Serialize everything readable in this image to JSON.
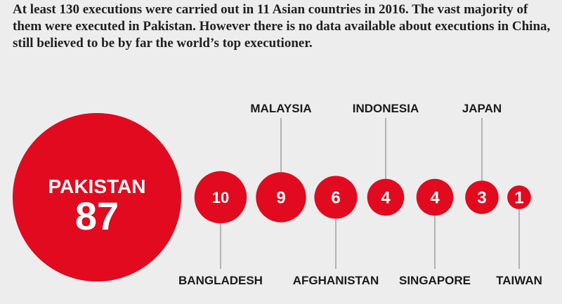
{
  "intro_text": "At least 130 executions were carried out in 11 Asian countries in 2016. The vast majority of them were executed in Pakistan. However there is no data available about executions in China, still believed to be by far the world’s top executioner.",
  "colors": {
    "bubble": "#e10a1e",
    "background": "#ededed",
    "leader": "#8a8a8a"
  },
  "chart_data": {
    "type": "bubble",
    "title": "",
    "categories": [
      "PAKISTAN",
      "BANGLADESH",
      "MALAYSIA",
      "AFGHANISTAN",
      "INDONESIA",
      "SINGAPORE",
      "JAPAN",
      "TAIWAN"
    ],
    "values": [
      87,
      10,
      9,
      6,
      4,
      4,
      3,
      1
    ],
    "label_position": [
      "inside",
      "below",
      "above",
      "below",
      "above",
      "below",
      "above",
      "below"
    ]
  }
}
